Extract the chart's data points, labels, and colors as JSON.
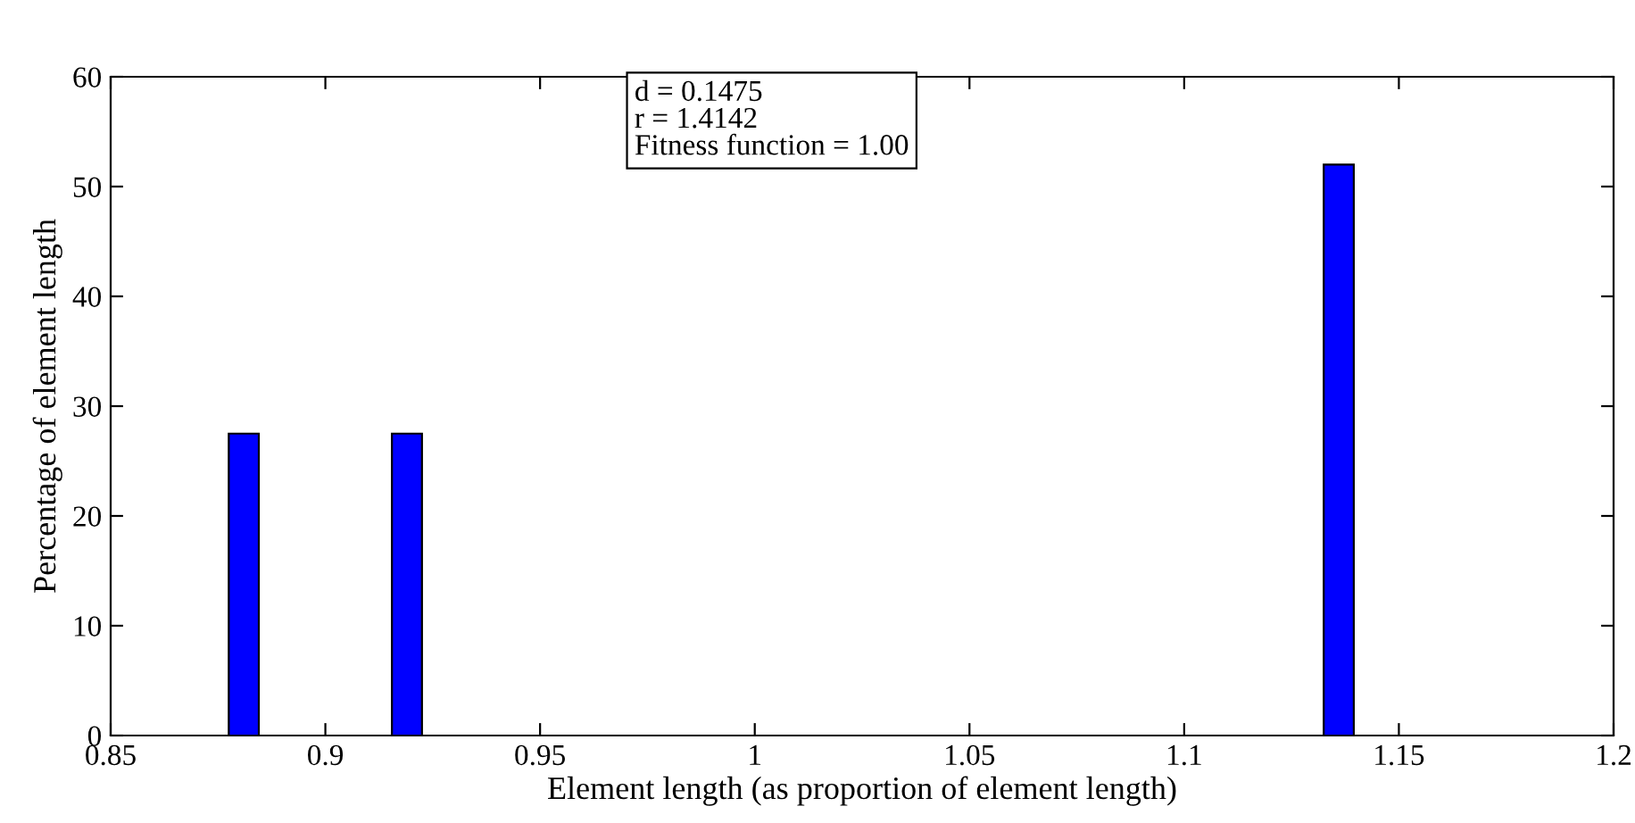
{
  "chart_data": {
    "type": "bar",
    "xlabel": "Element length (as proportion of element length)",
    "ylabel": "Percentage of element length",
    "x": [
      0.881,
      0.919,
      1.136
    ],
    "values": [
      27.5,
      27.5,
      52
    ],
    "color": "#0000ff",
    "xlim": [
      0.85,
      1.2
    ],
    "xticks": [
      0.85,
      0.9,
      0.95,
      1,
      1.05,
      1.1,
      1.15,
      1.2
    ],
    "ylim": [
      0,
      60
    ],
    "yticks": [
      0,
      10,
      20,
      30,
      40,
      50,
      60
    ],
    "annotations": [
      "d = 0.1475",
      "r = 1.4142",
      "Fitness function = 1.00"
    ]
  }
}
